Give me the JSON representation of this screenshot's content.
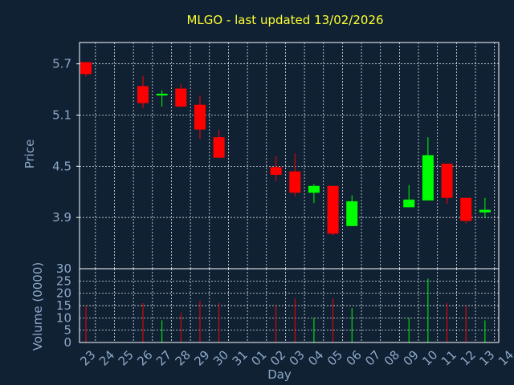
{
  "colors": {
    "background": "#0f2133",
    "plot_border": "#ffffff",
    "grid": "#ffffff",
    "title": "#ffff33",
    "axis_text": "#8fa8c8",
    "up": "#00ff00",
    "down": "#ff0000"
  },
  "chart_data": [
    {
      "type": "candlestick",
      "title": "MLGO - last updated 13/02/2026",
      "ylabel": "Price",
      "ylim": [
        3.3,
        5.95
      ],
      "y_ticks": [
        3.9,
        4.5,
        5.1,
        5.7
      ],
      "y_tick_labels": [
        "3.9",
        "4.5",
        "5.1",
        "5.7"
      ],
      "grid": true,
      "categories": [
        "23",
        "24",
        "25",
        "26",
        "27",
        "28",
        "29",
        "30",
        "31",
        "01",
        "02",
        "03",
        "04",
        "05",
        "06",
        "07",
        "08",
        "09",
        "10",
        "11",
        "12",
        "13",
        "14"
      ],
      "candles": [
        {
          "day": "23",
          "open": 5.72,
          "high": 5.72,
          "low": 5.55,
          "close": 5.58
        },
        {
          "day": "26",
          "open": 5.44,
          "high": 5.56,
          "low": 5.18,
          "close": 5.24
        },
        {
          "day": "27",
          "open": 5.33,
          "high": 5.39,
          "low": 5.2,
          "close": 5.35
        },
        {
          "day": "28",
          "open": 5.41,
          "high": 5.46,
          "low": 5.19,
          "close": 5.2
        },
        {
          "day": "29",
          "open": 5.22,
          "high": 5.33,
          "low": 4.82,
          "close": 4.93
        },
        {
          "day": "30",
          "open": 4.84,
          "high": 4.93,
          "low": 4.6,
          "close": 4.6
        },
        {
          "day": "02",
          "open": 4.49,
          "high": 4.62,
          "low": 4.33,
          "close": 4.4
        },
        {
          "day": "03",
          "open": 4.44,
          "high": 4.65,
          "low": 4.15,
          "close": 4.19
        },
        {
          "day": "04",
          "open": 4.19,
          "high": 4.29,
          "low": 4.07,
          "close": 4.27
        },
        {
          "day": "05",
          "open": 4.27,
          "high": 4.27,
          "low": 3.69,
          "close": 3.71
        },
        {
          "day": "06",
          "open": 3.8,
          "high": 4.16,
          "low": 3.8,
          "close": 4.09
        },
        {
          "day": "09",
          "open": 4.02,
          "high": 4.28,
          "low": 4.02,
          "close": 4.11
        },
        {
          "day": "10",
          "open": 4.1,
          "high": 4.84,
          "low": 4.1,
          "close": 4.63
        },
        {
          "day": "11",
          "open": 4.53,
          "high": 4.53,
          "low": 4.06,
          "close": 4.13
        },
        {
          "day": "12",
          "open": 4.13,
          "high": 4.13,
          "low": 3.83,
          "close": 3.86
        },
        {
          "day": "13",
          "open": 3.96,
          "high": 4.13,
          "low": 3.9,
          "close": 3.99
        }
      ]
    },
    {
      "type": "bar",
      "ylabel": "Volume (0000)",
      "xlabel": "Day",
      "ylim": [
        0,
        30
      ],
      "y_ticks": [
        0,
        5,
        10,
        15,
        20,
        25,
        30
      ],
      "y_tick_labels": [
        "0",
        "5",
        "10",
        "15",
        "20",
        "25",
        "30"
      ],
      "categories": [
        "23",
        "24",
        "25",
        "26",
        "27",
        "28",
        "29",
        "30",
        "31",
        "01",
        "02",
        "03",
        "04",
        "05",
        "06",
        "07",
        "08",
        "09",
        "10",
        "11",
        "12",
        "13",
        "14"
      ],
      "x_tick_labels": [
        "23",
        "24",
        "25",
        "26",
        "27",
        "28",
        "29",
        "30",
        "31",
        "01",
        "02",
        "03",
        "04",
        "05",
        "06",
        "07",
        "08",
        "09",
        "10",
        "11",
        "12",
        "13",
        "14"
      ],
      "bars": [
        {
          "day": "23",
          "value": 15,
          "dir": "down"
        },
        {
          "day": "26",
          "value": 16,
          "dir": "down"
        },
        {
          "day": "27",
          "value": 9,
          "dir": "up"
        },
        {
          "day": "28",
          "value": 12,
          "dir": "down"
        },
        {
          "day": "29",
          "value": 17,
          "dir": "down"
        },
        {
          "day": "30",
          "value": 16,
          "dir": "down"
        },
        {
          "day": "02",
          "value": 15,
          "dir": "down"
        },
        {
          "day": "03",
          "value": 18,
          "dir": "down"
        },
        {
          "day": "04",
          "value": 10,
          "dir": "up"
        },
        {
          "day": "05",
          "value": 18,
          "dir": "down"
        },
        {
          "day": "06",
          "value": 14,
          "dir": "up"
        },
        {
          "day": "09",
          "value": 10,
          "dir": "up"
        },
        {
          "day": "10",
          "value": 26,
          "dir": "up"
        },
        {
          "day": "11",
          "value": 16,
          "dir": "down"
        },
        {
          "day": "12",
          "value": 15,
          "dir": "down"
        },
        {
          "day": "13",
          "value": 9,
          "dir": "up"
        }
      ]
    }
  ]
}
